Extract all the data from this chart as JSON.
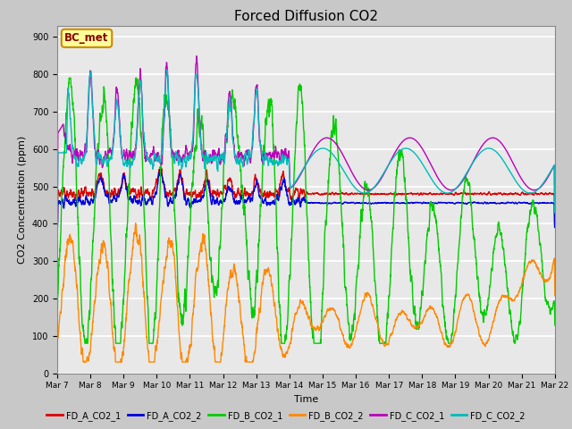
{
  "title": "Forced Diffusion CO2",
  "xlabel": "Time",
  "ylabel": "CO2 Concentration (ppm)",
  "ylim": [
    0,
    930
  ],
  "yticks": [
    0,
    100,
    200,
    300,
    400,
    500,
    600,
    700,
    800,
    900
  ],
  "fig_bg_color": "#c8c8c8",
  "plot_bg_color": "#e8e8e8",
  "grid_color": "#ffffff",
  "series_colors": {
    "FD_A_CO2_1": "#dd0000",
    "FD_A_CO2_2": "#0000dd",
    "FD_B_CO2_1": "#00cc00",
    "FD_B_CO2_2": "#ff8800",
    "FD_C_CO2_1": "#bb00bb",
    "FD_C_CO2_2": "#00bbbb"
  },
  "annotation_text": "BC_met",
  "annotation_box_color": "#ffff99",
  "annotation_border_color": "#cc8800",
  "tick_labels": [
    "Mar 7",
    "Mar 8",
    "Mar 9",
    "Mar 10",
    "Mar 11",
    "Mar 12",
    "Mar 13",
    "Mar 14",
    "Mar 15",
    "Mar 16",
    "Mar 17",
    "Mar 18",
    "Mar 19",
    "Mar 20",
    "Mar 21",
    "Mar 22"
  ],
  "legend_labels": [
    "FD_A_CO2_1",
    "FD_A_CO2_2",
    "FD_B_CO2_1",
    "FD_B_CO2_2",
    "FD_C_CO2_1",
    "FD_C_CO2_2"
  ]
}
